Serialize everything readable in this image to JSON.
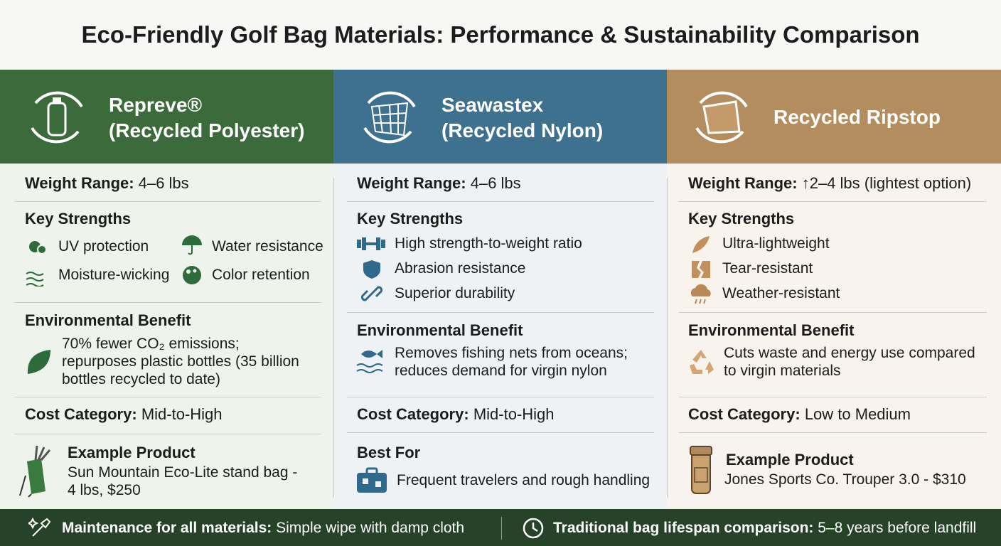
{
  "title": "Eco-Friendly Golf Bag Materials: Performance & Sustainability Comparison",
  "columns": [
    {
      "name": "Repreve®",
      "subname": "(Recycled Polyester)",
      "weight": {
        "label": "Weight Range:",
        "value": "4–6 lbs"
      },
      "strengths": {
        "heading": "Key Strengths",
        "items": [
          "UV protection",
          "Water resistance",
          "Moisture-wicking",
          "Color retention"
        ]
      },
      "benefit": {
        "heading": "Environmental Benefit",
        "text": "70% fewer CO₂ emissions; repurposes plastic bottles (35 billion bottles recycled to date)"
      },
      "cost": {
        "label": "Cost Category:",
        "value": "Mid-to-High"
      },
      "extra": {
        "heading": "Example Product",
        "text": "Sun Mountain Eco-Lite stand bag - 4 lbs, $250"
      }
    },
    {
      "name": "Seawastex",
      "subname": "(Recycled Nylon)",
      "weight": {
        "label": "Weight Range:",
        "value": "4–6 lbs"
      },
      "strengths": {
        "heading": "Key Strengths",
        "items": [
          "High strength-to-weight ratio",
          "Abrasion resistance",
          "Superior durability"
        ]
      },
      "benefit": {
        "heading": "Environmental Benefit",
        "text": "Removes fishing nets from oceans; reduces demand for virgin nylon"
      },
      "cost": {
        "label": "Cost Category:",
        "value": "Mid-to-High"
      },
      "extra": {
        "heading": "Best For",
        "text": "Frequent travelers and rough handling"
      }
    },
    {
      "name": "Recycled Ripstop",
      "weight": {
        "label": "Weight Range:",
        "value": "↑2–4 lbs (lightest option)"
      },
      "strengths": {
        "heading": "Key Strengths",
        "items": [
          "Ultra-lightweight",
          "Tear-resistant",
          "Weather-resistant"
        ]
      },
      "benefit": {
        "heading": "Environmental Benefit",
        "text": "Cuts waste and energy use compared to virgin materials"
      },
      "cost": {
        "label": "Cost Category:",
        "value": "Low to Medium"
      },
      "extra": {
        "heading": "Example Product",
        "text": "Jones Sports Co. Trouper 3.0 - $310"
      }
    }
  ],
  "footer": [
    {
      "label": "Maintenance for all materials:",
      "value": "Simple wipe with damp cloth"
    },
    {
      "label": "Traditional bag lifespan comparison:",
      "value": "5–8 years before landfill"
    }
  ]
}
